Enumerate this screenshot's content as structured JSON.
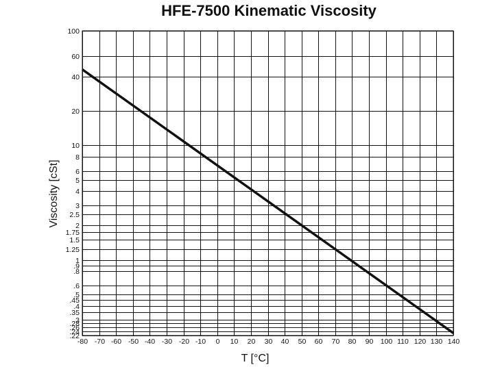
{
  "chart_data": {
    "type": "line",
    "title": "HFE-7500 Kinematic Viscosity",
    "xlabel": "T [°C]",
    "ylabel": "Viscosity [cSt]",
    "xlim": [
      -80,
      140
    ],
    "ylim": [
      0.22,
      100
    ],
    "yscale": "log",
    "grid": true,
    "x_ticks": [
      -80,
      -70,
      -60,
      -50,
      -40,
      -30,
      -20,
      -10,
      0,
      10,
      20,
      30,
      40,
      50,
      60,
      70,
      80,
      90,
      100,
      110,
      120,
      130,
      140
    ],
    "y_ticks": [
      {
        "value": 100,
        "label": "100"
      },
      {
        "value": 60,
        "label": "60"
      },
      {
        "value": 40,
        "label": "40"
      },
      {
        "value": 20,
        "label": "20"
      },
      {
        "value": 10,
        "label": "10"
      },
      {
        "value": 8,
        "label": "8"
      },
      {
        "value": 6,
        "label": "6"
      },
      {
        "value": 5,
        "label": "5"
      },
      {
        "value": 4,
        "label": "4"
      },
      {
        "value": 3,
        "label": "3"
      },
      {
        "value": 2.5,
        "label": "2.5"
      },
      {
        "value": 2,
        "label": "2"
      },
      {
        "value": 1.75,
        "label": "1.75"
      },
      {
        "value": 1.5,
        "label": "1.5"
      },
      {
        "value": 1.25,
        "label": "1.25"
      },
      {
        "value": 1,
        "label": "1"
      },
      {
        "value": 0.9,
        "label": ".9"
      },
      {
        "value": 0.8,
        "label": ".8"
      },
      {
        "value": 0.6,
        "label": ".6"
      },
      {
        "value": 0.5,
        "label": ".5"
      },
      {
        "value": 0.45,
        "label": ".45"
      },
      {
        "value": 0.4,
        "label": ".4"
      },
      {
        "value": 0.35,
        "label": ".35"
      },
      {
        "value": 0.3,
        "label": ".3"
      },
      {
        "value": 0.28,
        "label": ".28"
      },
      {
        "value": 0.26,
        "label": ".26"
      },
      {
        "value": 0.24,
        "label": ".24"
      },
      {
        "value": 0.22,
        "label": ".22"
      }
    ],
    "series": [
      {
        "x": [
          -80,
          140
        ],
        "y": [
          46,
          0.231
        ]
      }
    ],
    "colors": {
      "line": "#111111",
      "grid": "#111111"
    }
  }
}
